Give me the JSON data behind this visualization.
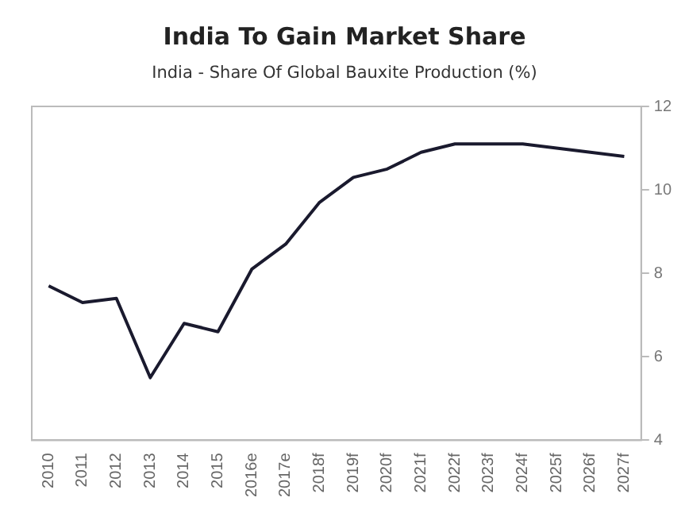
{
  "chart_data": {
    "type": "line",
    "title": "India To Gain Market Share",
    "subtitle": "India - Share Of Global Bauxite Production (%)",
    "categories": [
      "2010",
      "2011",
      "2012",
      "2013",
      "2014",
      "2015",
      "2016e",
      "2017e",
      "2018f",
      "2019f",
      "2020f",
      "2021f",
      "2022f",
      "2023f",
      "2024f",
      "2025f",
      "2026f",
      "2027f"
    ],
    "series": [
      {
        "color": "#1a1a2e",
        "values": [
          7.7,
          7.3,
          7.4,
          5.5,
          6.8,
          6.6,
          8.1,
          8.7,
          9.7,
          10.3,
          10.5,
          10.9,
          11.1,
          11.1,
          11.1,
          11.0,
          10.9,
          10.8
        ],
        "axis": "y2"
      }
    ],
    "y2lim": [
      4,
      12
    ],
    "y2ticks": [
      4,
      6,
      8,
      10,
      12
    ],
    "grid": false,
    "legend": false,
    "marker": "none",
    "line_style": "solid"
  }
}
